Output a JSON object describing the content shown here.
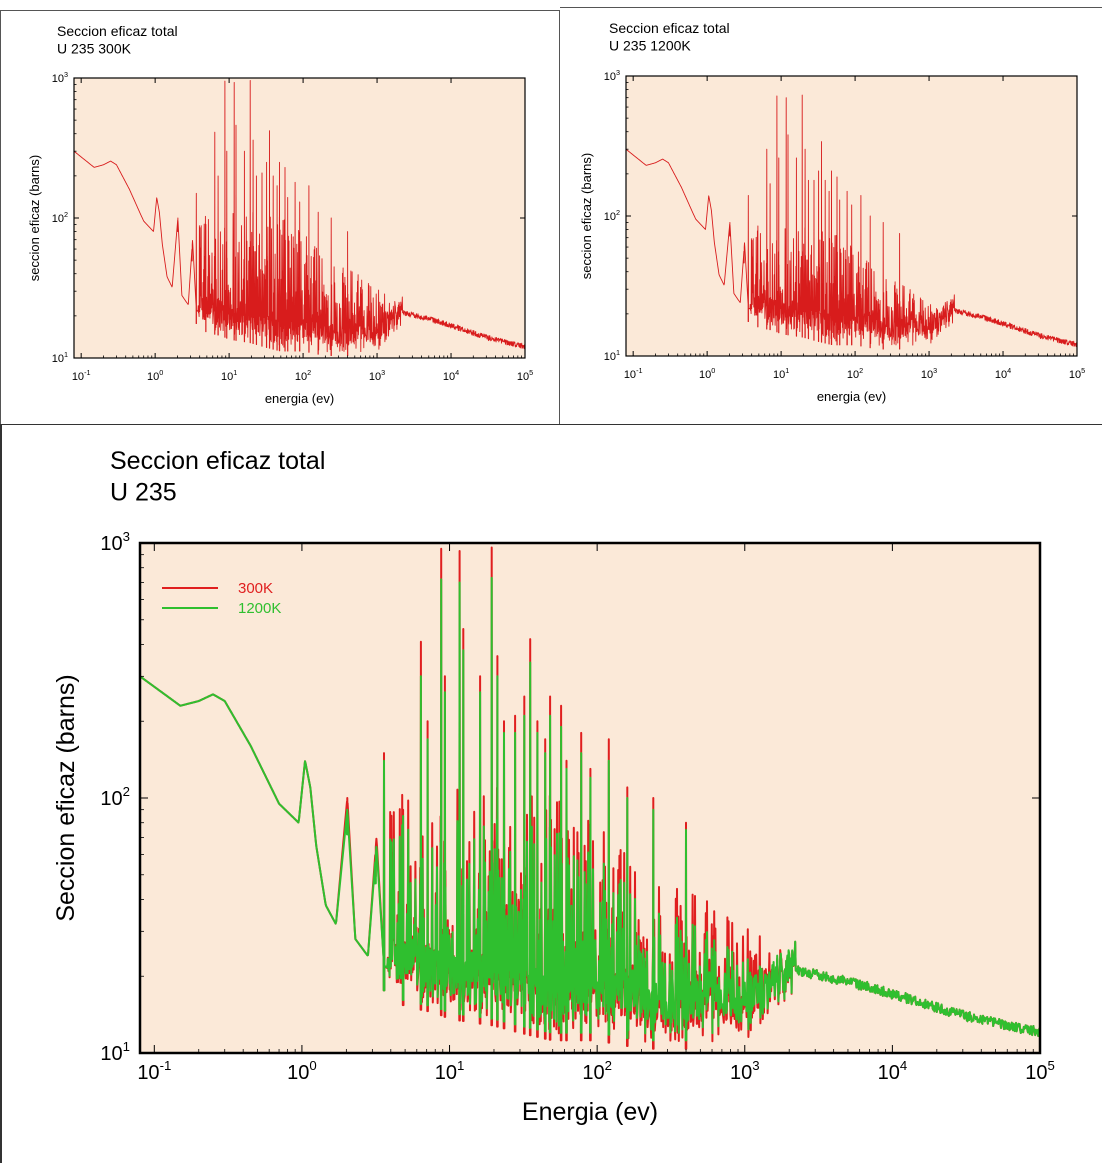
{
  "chart_data": [
    {
      "type": "line",
      "title": "Seccion eficaz total",
      "subtitle": "U 235 300K",
      "xlabel": "energia (ev)",
      "ylabel": "seccion eficaz (barns)",
      "xscale": "log",
      "yscale": "log",
      "xlim": [
        0.08,
        100000
      ],
      "ylim": [
        10,
        1000
      ],
      "grid": false,
      "background_color": "#fbe9d8",
      "x_ticks": [
        "10-1",
        "100",
        "101",
        "102",
        "103",
        "104",
        "105"
      ],
      "y_ticks": [
        "101",
        "102",
        "103"
      ],
      "series": [
        {
          "color": "#d81c1c",
          "peak_scale": 1.0,
          "x": [
            0.08,
            0.15,
            0.2,
            0.25,
            0.3,
            0.45,
            0.7,
            0.95,
            1.05,
            1.14,
            1.25,
            1.45,
            1.7,
            2.03,
            2.3,
            2.8,
            3.2,
            3.6,
            5,
            8,
            10,
            20,
            30,
            50,
            100,
            200,
            500,
            1000,
            2250,
            5000,
            10000,
            30000,
            100000
          ],
          "y": [
            300,
            230,
            240,
            255,
            240,
            160,
            95,
            80,
            140,
            110,
            65,
            38,
            32,
            100,
            28,
            24,
            70,
            22,
            19,
            18,
            17,
            16,
            15,
            14,
            14,
            13,
            13,
            13,
            21,
            19,
            17,
            14,
            12
          ],
          "peaks": [
            {
              "x": 2.03,
              "y": 100
            },
            {
              "x": 3.15,
              "y": 60
            },
            {
              "x": 3.6,
              "y": 150
            },
            {
              "x": 4.85,
              "y": 90
            },
            {
              "x": 6.4,
              "y": 410
            },
            {
              "x": 7.1,
              "y": 200
            },
            {
              "x": 8.78,
              "y": 950
            },
            {
              "x": 9.3,
              "y": 300
            },
            {
              "x": 11.7,
              "y": 930
            },
            {
              "x": 12.4,
              "y": 460
            },
            {
              "x": 16.1,
              "y": 300
            },
            {
              "x": 19.3,
              "y": 960
            },
            {
              "x": 21.1,
              "y": 360
            },
            {
              "x": 23.4,
              "y": 200
            },
            {
              "x": 27.8,
              "y": 210
            },
            {
              "x": 32.1,
              "y": 250
            },
            {
              "x": 35.2,
              "y": 420
            },
            {
              "x": 39.4,
              "y": 200
            },
            {
              "x": 44.5,
              "y": 170
            },
            {
              "x": 48,
              "y": 250
            },
            {
              "x": 57,
              "y": 230
            },
            {
              "x": 62,
              "y": 140
            },
            {
              "x": 78,
              "y": 180
            },
            {
              "x": 90,
              "y": 130
            },
            {
              "x": 120,
              "y": 170
            },
            {
              "x": 160,
              "y": 110
            },
            {
              "x": 240,
              "y": 100
            },
            {
              "x": 400,
              "y": 80
            }
          ]
        }
      ]
    },
    {
      "type": "line",
      "title": "Seccion eficaz total",
      "subtitle": "U 235 1200K",
      "xlabel": "energia (ev)",
      "ylabel": "seccion eficaz (barns)",
      "xscale": "log",
      "yscale": "log",
      "xlim": [
        0.08,
        100000
      ],
      "ylim": [
        10,
        1000
      ],
      "grid": false,
      "background_color": "#fbe9d8",
      "x_ticks": [
        "10-1",
        "100",
        "101",
        "102",
        "103",
        "104",
        "105"
      ],
      "y_ticks": [
        "101",
        "102",
        "103"
      ],
      "series": [
        {
          "color": "#d81c1c",
          "peak_scale": 0.75,
          "x": [
            0.08,
            0.15,
            0.2,
            0.25,
            0.3,
            0.45,
            0.7,
            0.95,
            1.05,
            1.14,
            1.25,
            1.45,
            1.7,
            2.03,
            2.3,
            2.8,
            3.2,
            3.6,
            5,
            8,
            10,
            20,
            30,
            50,
            100,
            200,
            500,
            1000,
            2250,
            5000,
            10000,
            30000,
            100000
          ],
          "y": [
            300,
            230,
            240,
            255,
            240,
            160,
            95,
            80,
            140,
            110,
            65,
            38,
            32,
            90,
            28,
            24,
            65,
            22,
            20,
            19,
            18,
            17,
            16,
            15,
            15,
            14,
            14,
            14,
            21,
            19,
            17,
            14,
            12
          ],
          "peaks": [
            {
              "x": 2.03,
              "y": 90
            },
            {
              "x": 3.15,
              "y": 55
            },
            {
              "x": 3.6,
              "y": 140
            },
            {
              "x": 4.85,
              "y": 85
            },
            {
              "x": 6.4,
              "y": 300
            },
            {
              "x": 7.1,
              "y": 170
            },
            {
              "x": 8.78,
              "y": 720
            },
            {
              "x": 9.3,
              "y": 260
            },
            {
              "x": 11.7,
              "y": 700
            },
            {
              "x": 12.4,
              "y": 380
            },
            {
              "x": 16.1,
              "y": 260
            },
            {
              "x": 19.3,
              "y": 730
            },
            {
              "x": 21.1,
              "y": 300
            },
            {
              "x": 23.4,
              "y": 180
            },
            {
              "x": 27.8,
              "y": 180
            },
            {
              "x": 32.1,
              "y": 210
            },
            {
              "x": 35.2,
              "y": 340
            },
            {
              "x": 39.4,
              "y": 180
            },
            {
              "x": 44.5,
              "y": 150
            },
            {
              "x": 48,
              "y": 210
            },
            {
              "x": 57,
              "y": 190
            },
            {
              "x": 62,
              "y": 130
            },
            {
              "x": 78,
              "y": 150
            },
            {
              "x": 90,
              "y": 120
            },
            {
              "x": 120,
              "y": 140
            },
            {
              "x": 160,
              "y": 100
            },
            {
              "x": 240,
              "y": 90
            },
            {
              "x": 400,
              "y": 75
            }
          ]
        }
      ]
    },
    {
      "type": "line",
      "title": "Seccion eficaz total",
      "subtitle": "U 235",
      "xlabel": "Energia (ev)",
      "ylabel": "Seccion eficaz (barns)",
      "xscale": "log",
      "yscale": "log",
      "xlim": [
        0.08,
        100000
      ],
      "ylim": [
        10,
        1000
      ],
      "grid": false,
      "legend": "top-left",
      "background_color": "#fbe9d8",
      "x_ticks": [
        "10-1",
        "100",
        "101",
        "102",
        "103",
        "104",
        "105"
      ],
      "y_ticks": [
        "101",
        "102",
        "103"
      ],
      "series": [
        {
          "name": "300K",
          "color": "#e01f1f",
          "peak_scale": 1.0,
          "x": [
            0.08,
            0.15,
            0.2,
            0.25,
            0.3,
            0.45,
            0.7,
            0.95,
            1.05,
            1.14,
            1.25,
            1.45,
            1.7,
            2.03,
            2.3,
            2.8,
            3.2,
            3.6,
            5,
            8,
            10,
            20,
            30,
            50,
            100,
            200,
            500,
            1000,
            2250,
            5000,
            10000,
            30000,
            100000
          ],
          "y": [
            300,
            230,
            240,
            255,
            240,
            160,
            95,
            80,
            140,
            110,
            65,
            38,
            32,
            100,
            28,
            24,
            70,
            22,
            19,
            18,
            17,
            16,
            15,
            14,
            14,
            13,
            13,
            13,
            21,
            19,
            17,
            14,
            12
          ],
          "peaks": [
            {
              "x": 2.03,
              "y": 100
            },
            {
              "x": 3.15,
              "y": 60
            },
            {
              "x": 3.6,
              "y": 150
            },
            {
              "x": 4.85,
              "y": 90
            },
            {
              "x": 6.4,
              "y": 410
            },
            {
              "x": 7.1,
              "y": 200
            },
            {
              "x": 8.78,
              "y": 950
            },
            {
              "x": 9.3,
              "y": 300
            },
            {
              "x": 11.7,
              "y": 930
            },
            {
              "x": 12.4,
              "y": 460
            },
            {
              "x": 16.1,
              "y": 300
            },
            {
              "x": 19.3,
              "y": 960
            },
            {
              "x": 21.1,
              "y": 360
            },
            {
              "x": 23.4,
              "y": 200
            },
            {
              "x": 27.8,
              "y": 210
            },
            {
              "x": 32.1,
              "y": 250
            },
            {
              "x": 35.2,
              "y": 420
            },
            {
              "x": 39.4,
              "y": 200
            },
            {
              "x": 44.5,
              "y": 170
            },
            {
              "x": 48,
              "y": 250
            },
            {
              "x": 57,
              "y": 230
            },
            {
              "x": 62,
              "y": 140
            },
            {
              "x": 78,
              "y": 180
            },
            {
              "x": 90,
              "y": 130
            },
            {
              "x": 120,
              "y": 170
            },
            {
              "x": 160,
              "y": 110
            },
            {
              "x": 240,
              "y": 100
            },
            {
              "x": 400,
              "y": 80
            }
          ]
        },
        {
          "name": "1200K",
          "color": "#2fbf2f",
          "peak_scale": 0.75,
          "x": [
            0.08,
            0.15,
            0.2,
            0.25,
            0.3,
            0.45,
            0.7,
            0.95,
            1.05,
            1.14,
            1.25,
            1.45,
            1.7,
            2.03,
            2.3,
            2.8,
            3.2,
            3.6,
            5,
            8,
            10,
            20,
            30,
            50,
            100,
            200,
            500,
            1000,
            2250,
            5000,
            10000,
            30000,
            100000
          ],
          "y": [
            300,
            230,
            240,
            255,
            240,
            160,
            95,
            80,
            140,
            110,
            65,
            38,
            32,
            90,
            28,
            24,
            65,
            22,
            20,
            19,
            18,
            17,
            16,
            15,
            15,
            14,
            14,
            14,
            21,
            19,
            17,
            14,
            12
          ],
          "peaks": [
            {
              "x": 2.03,
              "y": 90
            },
            {
              "x": 3.15,
              "y": 55
            },
            {
              "x": 3.6,
              "y": 140
            },
            {
              "x": 4.85,
              "y": 85
            },
            {
              "x": 6.4,
              "y": 300
            },
            {
              "x": 7.1,
              "y": 170
            },
            {
              "x": 8.78,
              "y": 720
            },
            {
              "x": 9.3,
              "y": 260
            },
            {
              "x": 11.7,
              "y": 700
            },
            {
              "x": 12.4,
              "y": 380
            },
            {
              "x": 16.1,
              "y": 260
            },
            {
              "x": 19.3,
              "y": 730
            },
            {
              "x": 21.1,
              "y": 300
            },
            {
              "x": 23.4,
              "y": 180
            },
            {
              "x": 27.8,
              "y": 180
            },
            {
              "x": 32.1,
              "y": 210
            },
            {
              "x": 35.2,
              "y": 340
            },
            {
              "x": 39.4,
              "y": 180
            },
            {
              "x": 44.5,
              "y": 150
            },
            {
              "x": 48,
              "y": 210
            },
            {
              "x": 57,
              "y": 190
            },
            {
              "x": 62,
              "y": 130
            },
            {
              "x": 78,
              "y": 150
            },
            {
              "x": 90,
              "y": 120
            },
            {
              "x": 120,
              "y": 140
            },
            {
              "x": 160,
              "y": 100
            },
            {
              "x": 240,
              "y": 90
            },
            {
              "x": 400,
              "y": 75
            }
          ]
        }
      ]
    }
  ]
}
